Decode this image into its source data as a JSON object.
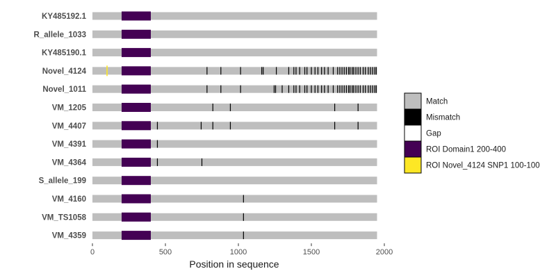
{
  "chart_data": {
    "type": "alignment-track",
    "xlabel": "Position in sequence",
    "xlim": [
      0,
      2000
    ],
    "xticks": [
      0,
      500,
      1000,
      1500,
      2000
    ],
    "sequence_length": 1950,
    "grid": false,
    "legend_position": "right",
    "sequences": [
      {
        "name": "KY485192.1",
        "mismatches": []
      },
      {
        "name": "R_allele_1033",
        "mismatches": []
      },
      {
        "name": "KY485190.1",
        "mismatches": []
      },
      {
        "name": "Novel_4124",
        "mismatches": [
          785,
          880,
          1015,
          1160,
          1170,
          1260,
          1345,
          1380,
          1395,
          1420,
          1455,
          1470,
          1500,
          1525,
          1545,
          1570,
          1590,
          1615,
          1650,
          1680,
          1695,
          1710,
          1725,
          1740,
          1755,
          1765,
          1780,
          1790,
          1805,
          1820,
          1835,
          1855,
          1870,
          1890,
          1905,
          1920,
          1935,
          1945
        ]
      },
      {
        "name": "Novel_1011",
        "mismatches": [
          785,
          880,
          1015,
          1245,
          1255,
          1300,
          1345,
          1380,
          1395,
          1420,
          1455,
          1470,
          1500,
          1525,
          1545,
          1570,
          1590,
          1615,
          1650,
          1680,
          1695,
          1710,
          1725,
          1740,
          1755,
          1765,
          1780,
          1790,
          1805,
          1820,
          1835,
          1855,
          1870,
          1890,
          1905,
          1920,
          1935,
          1945
        ]
      },
      {
        "name": "VM_1205",
        "mismatches": [
          825,
          945,
          1660,
          1820
        ]
      },
      {
        "name": "VM_4407",
        "mismatches": [
          445,
          745,
          825,
          945,
          1660,
          1820
        ]
      },
      {
        "name": "VM_4391",
        "mismatches": [
          445
        ]
      },
      {
        "name": "VM_4364",
        "mismatches": [
          445,
          750
        ]
      },
      {
        "name": "S_allele_199",
        "mismatches": []
      },
      {
        "name": "VM_4160",
        "mismatches": [
          1035
        ]
      },
      {
        "name": "VM_TS1058",
        "mismatches": [
          1035
        ]
      },
      {
        "name": "VM_4359",
        "mismatches": [
          1035
        ]
      }
    ],
    "roi_domain": {
      "start": 200,
      "end": 400,
      "sequences": "all"
    },
    "roi_snp": {
      "sequence": "Novel_4124",
      "position": 100
    },
    "legend": [
      {
        "label": "Match",
        "color": "#bebebe"
      },
      {
        "label": "Mismatch",
        "color": "#000000"
      },
      {
        "label": "Gap",
        "color": "#ffffff"
      },
      {
        "label": "ROI Domain1 200-400",
        "color": "#440154"
      },
      {
        "label": "ROI Novel_4124 SNP1 100-100",
        "color": "#fde725"
      }
    ]
  }
}
